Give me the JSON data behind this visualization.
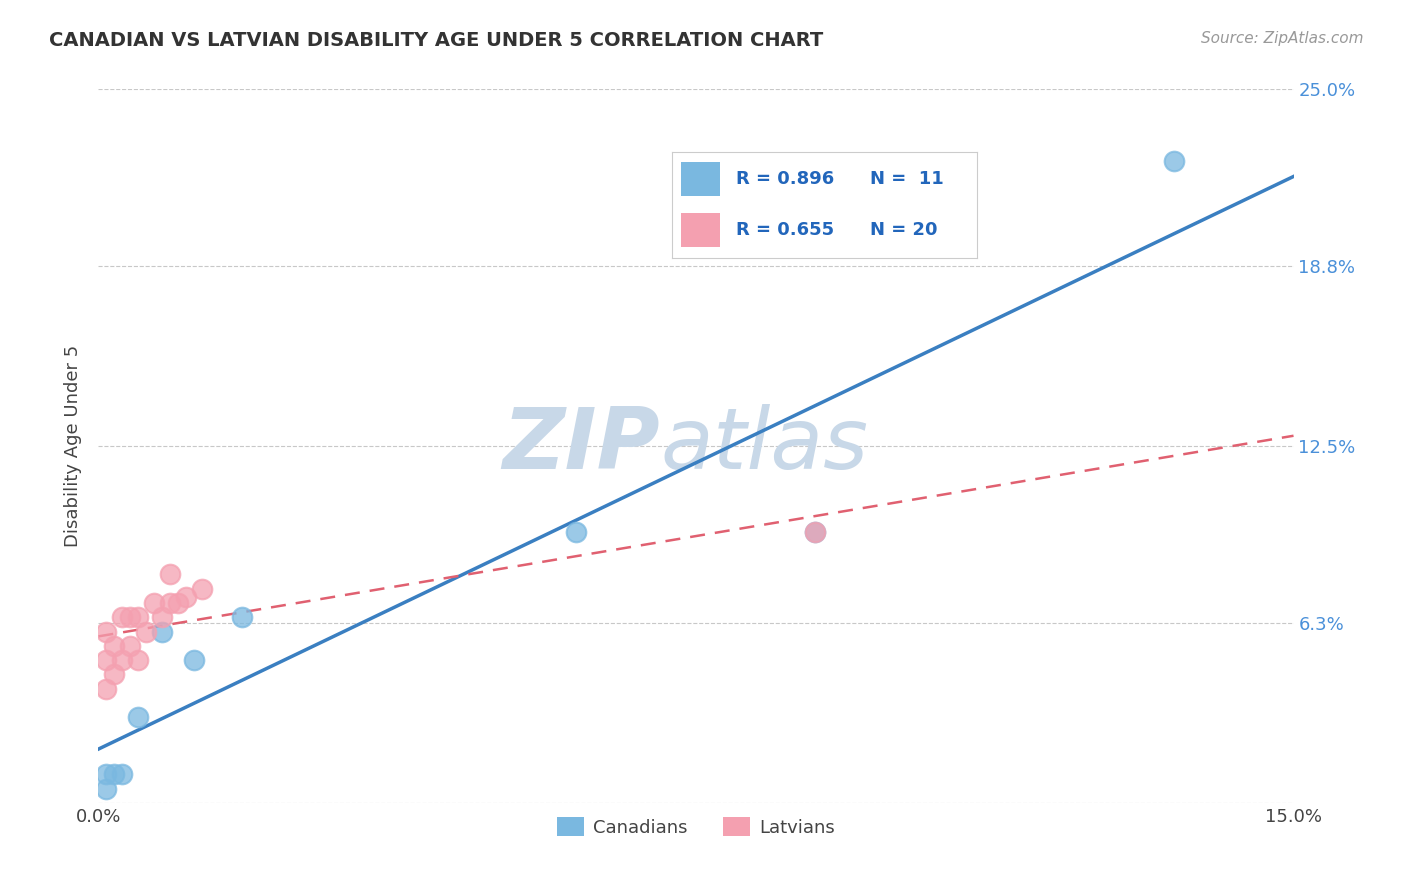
{
  "title": "CANADIAN VS LATVIAN DISABILITY AGE UNDER 5 CORRELATION CHART",
  "source_text": "Source: ZipAtlas.com",
  "ylabel": "Disability Age Under 5",
  "xlim": [
    0,
    0.15
  ],
  "ylim": [
    0,
    0.25
  ],
  "ytick_positions": [
    0.0,
    0.063,
    0.125,
    0.188,
    0.25
  ],
  "ytick_labels": [
    "",
    "6.3%",
    "12.5%",
    "18.8%",
    "25.0%"
  ],
  "xtick_positions": [
    0.0,
    0.15
  ],
  "xtick_labels": [
    "0.0%",
    "15.0%"
  ],
  "canadian_color": "#7ab8e0",
  "latvian_color": "#f4a0b0",
  "canadian_line_color": "#3a7fc1",
  "latvian_line_color": "#e06070",
  "grid_color": "#c8c8c8",
  "background_color": "#ffffff",
  "watermark_color": "#c8d8e8",
  "canadian_x": [
    0.001,
    0.001,
    0.002,
    0.003,
    0.005,
    0.008,
    0.012,
    0.018,
    0.06,
    0.09,
    0.135
  ],
  "canadian_y": [
    0.005,
    0.01,
    0.01,
    0.01,
    0.03,
    0.06,
    0.05,
    0.065,
    0.095,
    0.095,
    0.225
  ],
  "latvian_x": [
    0.001,
    0.001,
    0.001,
    0.002,
    0.002,
    0.003,
    0.003,
    0.004,
    0.004,
    0.005,
    0.005,
    0.006,
    0.007,
    0.008,
    0.009,
    0.009,
    0.01,
    0.011,
    0.013,
    0.09
  ],
  "latvian_y": [
    0.04,
    0.05,
    0.06,
    0.045,
    0.055,
    0.05,
    0.065,
    0.055,
    0.065,
    0.05,
    0.065,
    0.06,
    0.07,
    0.065,
    0.07,
    0.08,
    0.07,
    0.072,
    0.075,
    0.095
  ]
}
